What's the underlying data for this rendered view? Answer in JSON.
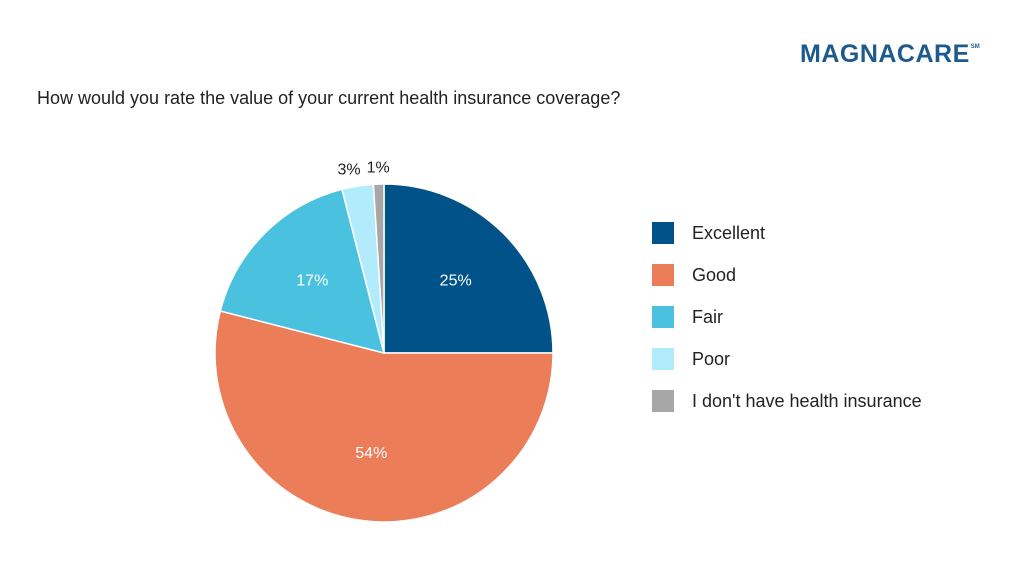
{
  "brand": {
    "name": "MAGNACARE",
    "mark": "SM"
  },
  "question": "How would you rate the value of your current health insurance coverage?",
  "chart_data": {
    "type": "pie",
    "title": "How would you rate the value of your current health insurance coverage?",
    "categories": [
      "Excellent",
      "Good",
      "Fair",
      "Poor",
      "I don't have health insurance"
    ],
    "values": [
      25,
      54,
      17,
      3,
      1
    ],
    "labels": [
      "25%",
      "54%",
      "17%",
      "3%",
      "1%"
    ],
    "colors": [
      "#005288",
      "#ec7d59",
      "#4bc1e0",
      "#b2ebfb",
      "#a7a7a7"
    ],
    "start_angle_deg": 0,
    "direction": "clockwise",
    "legend_position": "right"
  },
  "legend": [
    {
      "label": "Excellent",
      "color": "#005288"
    },
    {
      "label": "Good",
      "color": "#ec7d59"
    },
    {
      "label": "Fair",
      "color": "#4bc1e0"
    },
    {
      "label": "Poor",
      "color": "#b2ebfb"
    },
    {
      "label": "I don't have health insurance",
      "color": "#a7a7a7"
    }
  ]
}
